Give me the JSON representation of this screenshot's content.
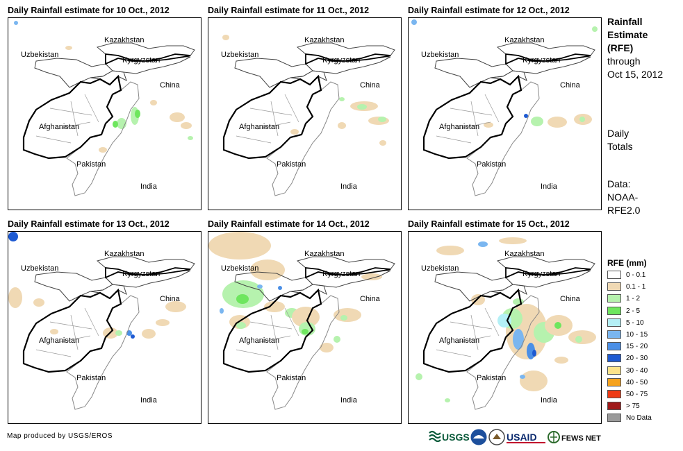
{
  "panels": [
    {
      "title": "Daily Rainfall estimate for 10 Oct., 2012"
    },
    {
      "title": "Daily Rainfall estimate for 11 Oct., 2012"
    },
    {
      "title": "Daily Rainfall estimate for 12 Oct., 2012"
    },
    {
      "title": "Daily Rainfall estimate for 13 Oct., 2012"
    },
    {
      "title": "Daily Rainfall estimate for 14 Oct., 2012"
    },
    {
      "title": "Daily Rainfall estimate for 15 Oct., 2012"
    }
  ],
  "map_labels": {
    "kazakhstan": "Kazakhstan",
    "uzbekistan": "Uzbekistan",
    "kyrgyzstan": "Kyrgyzstan",
    "china": "China",
    "afghanistan": "Afghanistan",
    "pakistan": "Pakistan",
    "india": "India"
  },
  "side": {
    "line1": "Rainfall",
    "line2": "Estimate",
    "line3": "(RFE)",
    "line4": "through",
    "line5": "Oct 15, 2012",
    "totals1": "Daily",
    "totals2": "Totals",
    "data1": "Data:",
    "data2": "NOAA-",
    "data3": "RFE2.0"
  },
  "legend": {
    "title": "RFE (mm)",
    "items": [
      {
        "label": "0 - 0.1",
        "color": "#ffffff"
      },
      {
        "label": "0.1 - 1",
        "color": "#f0d9b4"
      },
      {
        "label": "1 - 2",
        "color": "#b6f2ae"
      },
      {
        "label": "2 - 5",
        "color": "#6ee65e"
      },
      {
        "label": "5 - 10",
        "color": "#b4f0f6"
      },
      {
        "label": "10 - 15",
        "color": "#7ab6f0"
      },
      {
        "label": "15 - 20",
        "color": "#4b8fe6"
      },
      {
        "label": "20 - 30",
        "color": "#1e5ad2"
      },
      {
        "label": "30 - 40",
        "color": "#fde38a"
      },
      {
        "label": "40 - 50",
        "color": "#f5a21e"
      },
      {
        "label": "50 - 75",
        "color": "#ee3a14"
      },
      {
        "label": "> 75",
        "color": "#a01a1a"
      },
      {
        "label": "No Data",
        "color": "#9a9a9a"
      }
    ]
  },
  "credit": "Map produced by USGS/EROS",
  "logos": {
    "usgs": "USGS",
    "usaid": "USAID",
    "fews": "FEWS NET"
  }
}
